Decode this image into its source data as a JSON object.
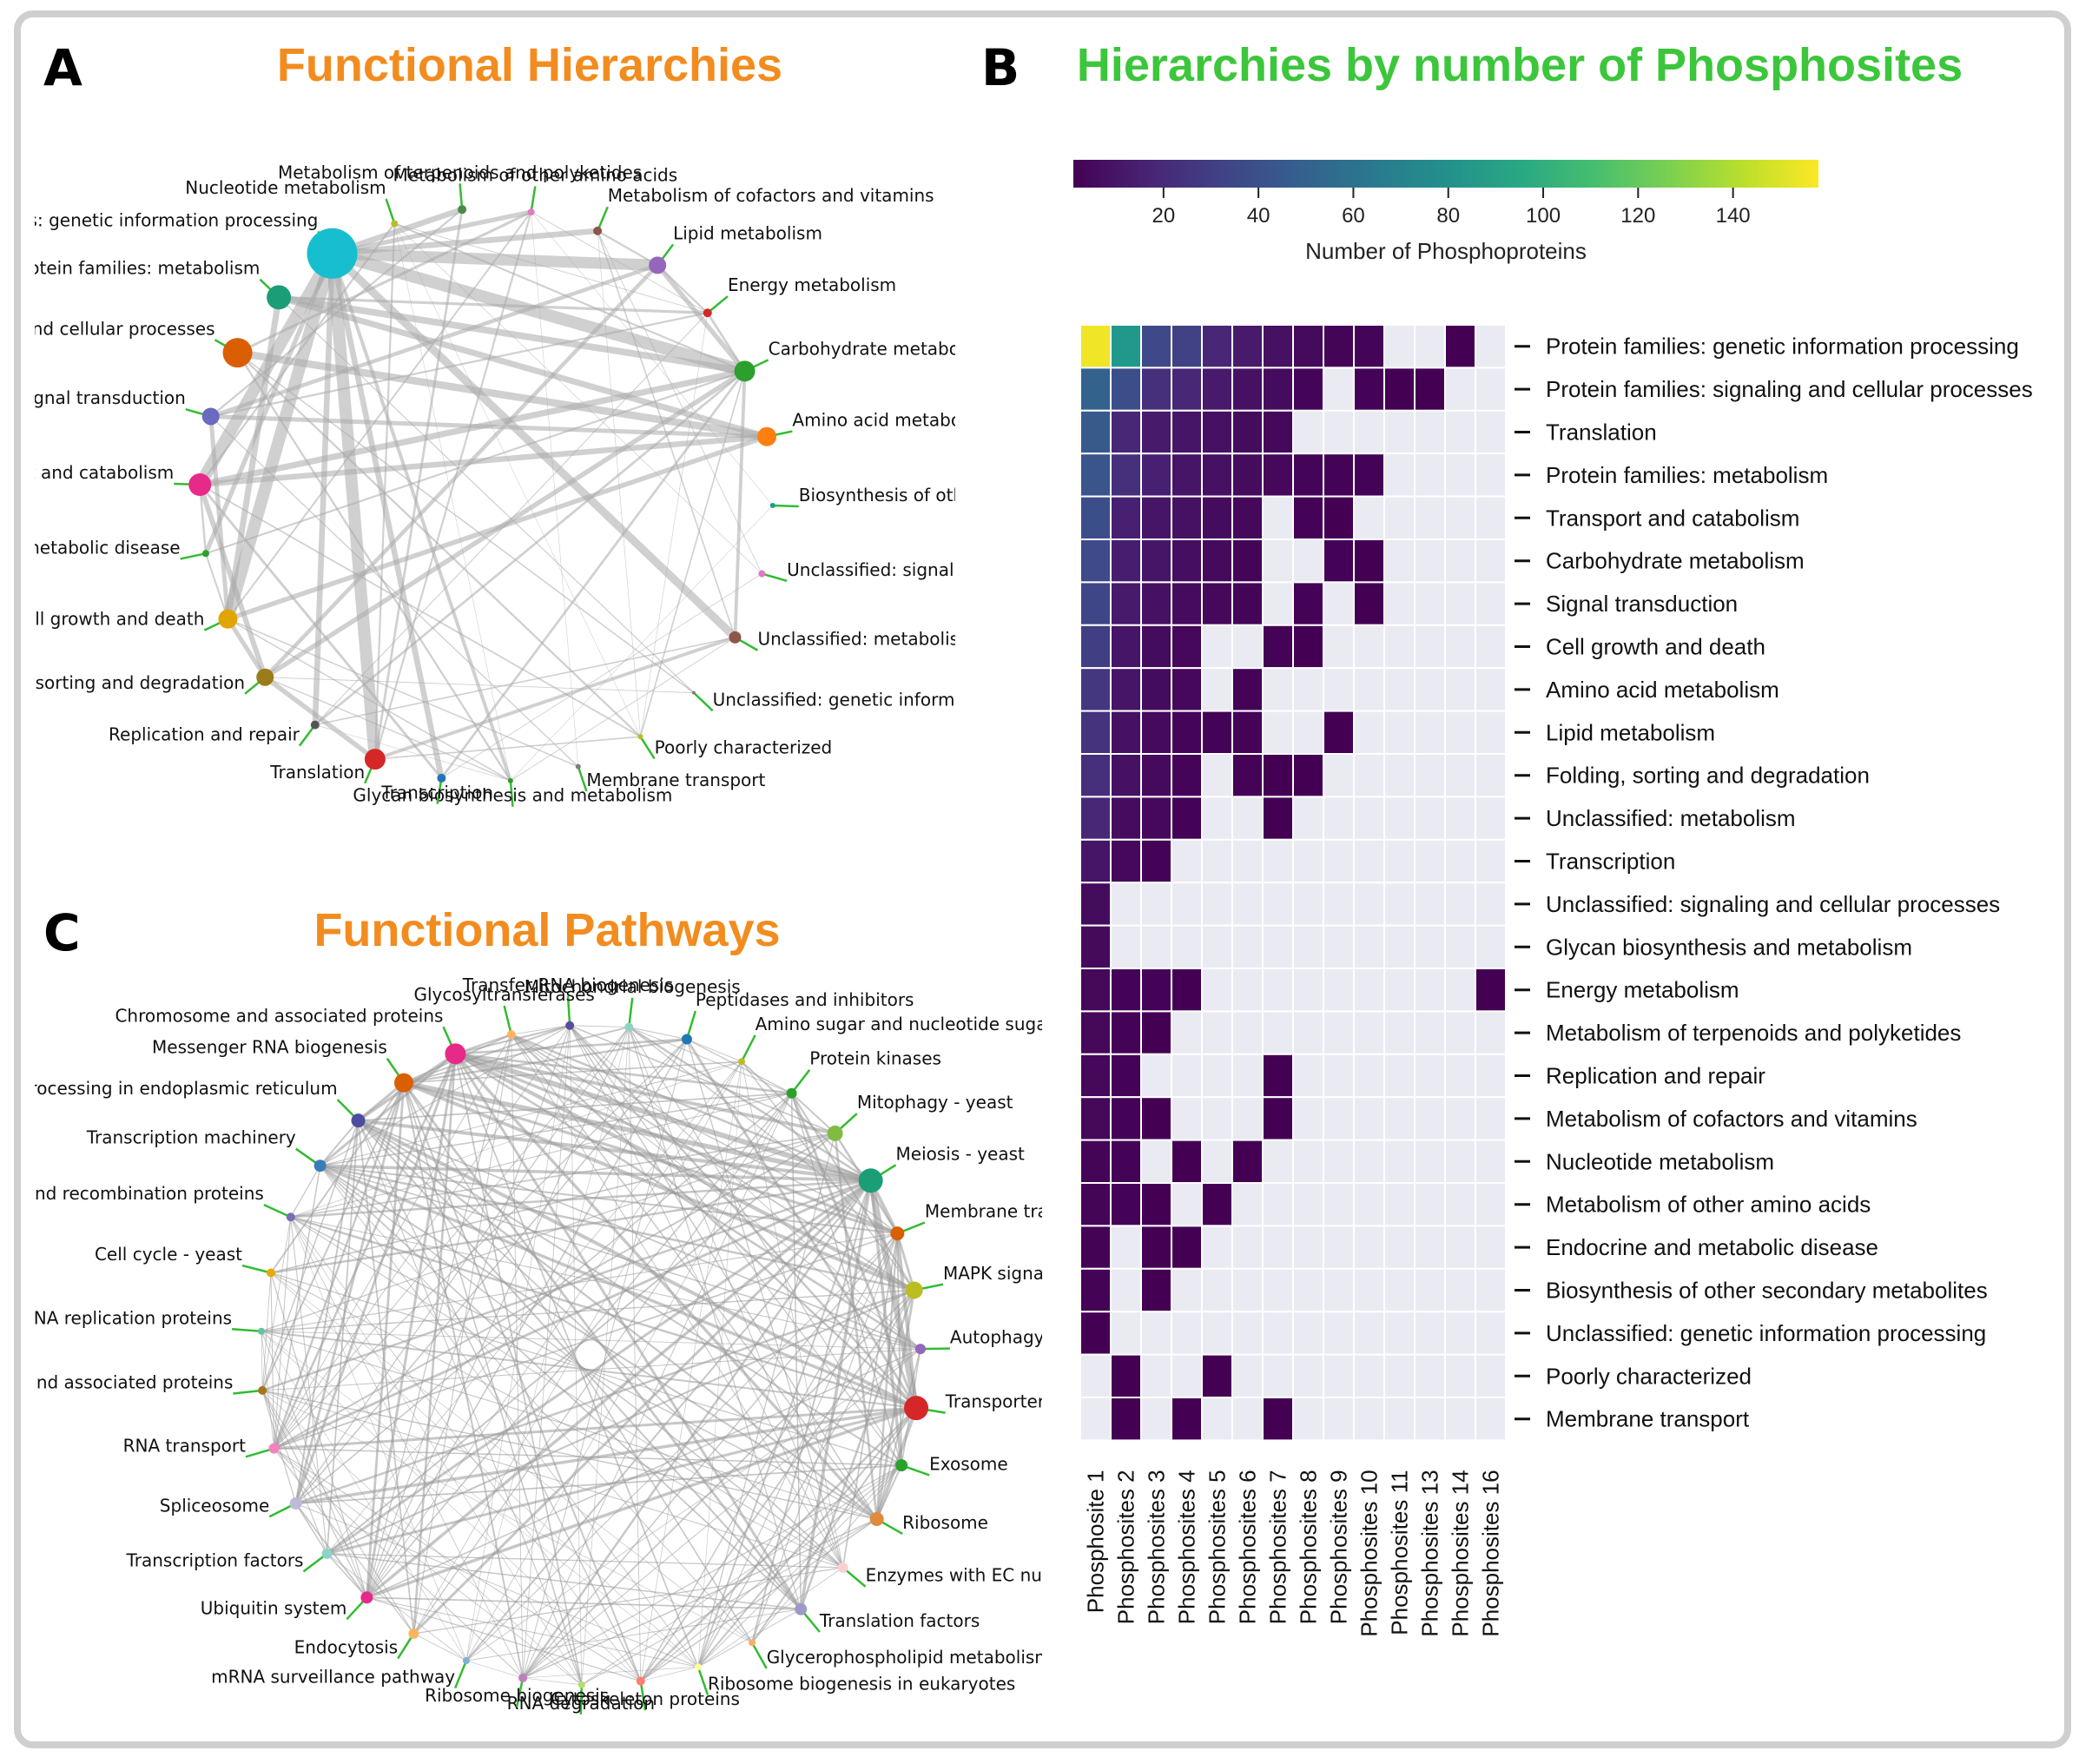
{
  "panels": {
    "a": {
      "letter": "A",
      "title": "Functional Hierarchies",
      "title_color": "#f28c1f"
    },
    "b": {
      "letter": "B",
      "title": "Hierarchies by number of Phosphosites",
      "title_color": "#3cc63c"
    },
    "c": {
      "letter": "C",
      "title": "Functional Pathways",
      "title_color": "#f28c1f"
    }
  },
  "chart_data": [
    {
      "panel": "A",
      "type": "network",
      "layout": "circular",
      "edge_color": "#aaaaaa",
      "label_line_color": "#33bb33",
      "nodes": [
        {
          "label": "Metabolism of other amino acids",
          "color": "#e377c2",
          "size": 4
        },
        {
          "label": "Metabolism of cofactors and vitamins",
          "color": "#8c564b",
          "size": 5
        },
        {
          "label": "Lipid metabolism",
          "color": "#9467bd",
          "size": 10
        },
        {
          "label": "Energy metabolism",
          "color": "#d62728",
          "size": 5
        },
        {
          "label": "Carbohydrate metabolism",
          "color": "#2ca02c",
          "size": 12
        },
        {
          "label": "Amino acid metabolism",
          "color": "#ff7f0e",
          "size": 11
        },
        {
          "label": "Biosynthesis of other secondary metabolites",
          "color": "#17a085",
          "size": 3
        },
        {
          "label": "Unclassified: signaling and cellular processes",
          "color": "#e377c2",
          "size": 4
        },
        {
          "label": "Unclassified: metabolism",
          "color": "#8c564b",
          "size": 7
        },
        {
          "label": "Unclassified: genetic information processing",
          "color": "#7f7f7f",
          "size": 2
        },
        {
          "label": "Poorly characterized",
          "color": "#bcbd22",
          "size": 3
        },
        {
          "label": "Membrane transport",
          "color": "#7f7f7f",
          "size": 3
        },
        {
          "label": "Glycan biosynthesis and metabolism",
          "color": "#2ca02c",
          "size": 3
        },
        {
          "label": "Transcription",
          "color": "#1f77b4",
          "size": 5
        },
        {
          "label": "Translation",
          "color": "#d62728",
          "size": 12
        },
        {
          "label": "Replication and repair",
          "color": "#555555",
          "size": 5
        },
        {
          "label": "Folding, sorting and degradation",
          "color": "#9a7c1a",
          "size": 10
        },
        {
          "label": "Cell growth and death",
          "color": "#e2a400",
          "size": 11
        },
        {
          "label": "Endocrine and metabolic disease",
          "color": "#2ca02c",
          "size": 4
        },
        {
          "label": "Transport and catabolism",
          "color": "#e7298a",
          "size": 13
        },
        {
          "label": "Signal transduction",
          "color": "#6a6ac0",
          "size": 10
        },
        {
          "label": "Protein families: signaling and cellular processes",
          "color": "#d95f02",
          "size": 17
        },
        {
          "label": "Protein families: metabolism",
          "color": "#1b9e77",
          "size": 14
        },
        {
          "label": "Protein families: genetic information processing",
          "color": "#17becf",
          "size": 29
        },
        {
          "label": "Nucleotide metabolism",
          "color": "#bcbd22",
          "size": 4
        },
        {
          "label": "Metabolism of terpenoids and polyketides",
          "color": "#4a8a4a",
          "size": 5
        }
      ]
    },
    {
      "panel": "B",
      "type": "heatmap",
      "colorbar": {
        "label": "Number of Phosphoproteins",
        "ticks": [
          20,
          40,
          60,
          80,
          100,
          120,
          140
        ],
        "range": [
          1,
          158
        ],
        "colormap": "viridis"
      },
      "columns": [
        "Phosphosite 1",
        "Phosphosites 2",
        "Phosphosites 3",
        "Phosphosites 4",
        "Phosphosites 5",
        "Phosphosites 6",
        "Phosphosites 7",
        "Phosphosites 8",
        "Phosphosites 9",
        "Phosphosites 10",
        "Phosphosites 11",
        "Phosphosites 13",
        "Phosphosites 14",
        "Phosphosites 16"
      ],
      "rows": [
        "Protein families: genetic information processing",
        "Protein families: signaling and cellular processes",
        "Translation",
        "Protein families: metabolism",
        "Transport and catabolism",
        "Carbohydrate metabolism",
        "Signal transduction",
        "Cell growth and death",
        "Amino acid metabolism",
        "Lipid metabolism",
        "Folding, sorting and degradation",
        "Unclassified: metabolism",
        "Transcription",
        "Unclassified: signaling and cellular processes",
        "Glycan biosynthesis and metabolism",
        "Energy metabolism",
        "Metabolism of terpenoids and polyketides",
        "Replication and repair",
        "Metabolism of cofactors and vitamins",
        "Nucleotide metabolism",
        "Metabolism of other amino acids",
        "Endocrine and metabolic disease",
        "Biosynthesis of other secondary metabolites",
        "Unclassified: genetic information processing",
        "Poorly characterized",
        "Membrane transport"
      ],
      "missing_color": "#eaeaf2",
      "values": [
        [
          155,
          85,
          35,
          32,
          18,
          12,
          8,
          5,
          3,
          3,
          null,
          null,
          1,
          null
        ],
        [
          50,
          38,
          22,
          18,
          12,
          8,
          6,
          3,
          null,
          2,
          1,
          1,
          null,
          null
        ],
        [
          45,
          18,
          12,
          10,
          8,
          6,
          4,
          null,
          null,
          null,
          null,
          null,
          null,
          null
        ],
        [
          42,
          22,
          15,
          10,
          8,
          6,
          4,
          3,
          2,
          2,
          null,
          null,
          null,
          null
        ],
        [
          38,
          15,
          10,
          8,
          6,
          4,
          null,
          2,
          1,
          null,
          null,
          null,
          null,
          null
        ],
        [
          36,
          14,
          10,
          7,
          5,
          3,
          null,
          null,
          2,
          1,
          null,
          null,
          null,
          null
        ],
        [
          34,
          12,
          8,
          6,
          4,
          3,
          null,
          2,
          null,
          1,
          null,
          null,
          null,
          null
        ],
        [
          30,
          10,
          6,
          4,
          null,
          null,
          2,
          1,
          null,
          null,
          null,
          null,
          null,
          null
        ],
        [
          26,
          10,
          6,
          4,
          null,
          2,
          null,
          null,
          null,
          null,
          null,
          null,
          null,
          null
        ],
        [
          24,
          8,
          5,
          3,
          2,
          2,
          null,
          null,
          1,
          null,
          null,
          null,
          null,
          null
        ],
        [
          22,
          8,
          5,
          3,
          null,
          2,
          1,
          1,
          null,
          null,
          null,
          null,
          null,
          null
        ],
        [
          18,
          6,
          4,
          2,
          null,
          null,
          1,
          null,
          null,
          null,
          null,
          null,
          null,
          null
        ],
        [
          10,
          4,
          2,
          null,
          null,
          null,
          null,
          null,
          null,
          null,
          null,
          null,
          null,
          null
        ],
        [
          6,
          null,
          null,
          null,
          null,
          null,
          null,
          null,
          null,
          null,
          null,
          null,
          null,
          null
        ],
        [
          5,
          null,
          null,
          null,
          null,
          null,
          null,
          null,
          null,
          null,
          null,
          null,
          null,
          null
        ],
        [
          4,
          2,
          2,
          1,
          null,
          null,
          null,
          null,
          null,
          null,
          null,
          null,
          null,
          1
        ],
        [
          4,
          2,
          1,
          null,
          null,
          null,
          null,
          null,
          null,
          null,
          null,
          null,
          null,
          null
        ],
        [
          4,
          2,
          null,
          null,
          null,
          null,
          1,
          null,
          null,
          null,
          null,
          null,
          null,
          null
        ],
        [
          4,
          2,
          1,
          null,
          null,
          null,
          1,
          null,
          null,
          null,
          null,
          null,
          null,
          null
        ],
        [
          3,
          2,
          null,
          1,
          null,
          1,
          null,
          null,
          null,
          null,
          null,
          null,
          null,
          null
        ],
        [
          3,
          2,
          1,
          null,
          1,
          null,
          null,
          null,
          null,
          null,
          null,
          null,
          null,
          null
        ],
        [
          2,
          null,
          1,
          1,
          null,
          null,
          null,
          null,
          null,
          null,
          null,
          null,
          null,
          null
        ],
        [
          2,
          null,
          1,
          null,
          null,
          null,
          null,
          null,
          null,
          null,
          null,
          null,
          null,
          null
        ],
        [
          1,
          null,
          null,
          null,
          null,
          null,
          null,
          null,
          null,
          null,
          null,
          null,
          null,
          null
        ],
        [
          null,
          1,
          null,
          null,
          1,
          null,
          null,
          null,
          null,
          null,
          null,
          null,
          null,
          null
        ],
        [
          null,
          1,
          null,
          1,
          null,
          null,
          1,
          null,
          null,
          null,
          null,
          null,
          null,
          null
        ]
      ]
    },
    {
      "panel": "C",
      "type": "network",
      "layout": "circular",
      "edge_color": "#999999",
      "label_line_color": "#33bb33",
      "nodes": [
        {
          "label": "Transfer RNA biogenesis",
          "color": "#5b4a9e",
          "size": 5
        },
        {
          "label": "Mitochondrial biogenesis",
          "color": "#8dd3c7",
          "size": 5
        },
        {
          "label": "Peptidases and inhibitors",
          "color": "#1f77b4",
          "size": 6
        },
        {
          "label": "Amino sugar and nucleotide sugar metabolism",
          "color": "#bcbd22",
          "size": 4
        },
        {
          "label": "Protein kinases",
          "color": "#2ca02c",
          "size": 6
        },
        {
          "label": "Mitophagy - yeast",
          "color": "#7fbc41",
          "size": 9
        },
        {
          "label": "Meiosis - yeast",
          "color": "#1b9e77",
          "size": 14
        },
        {
          "label": "Membrane trafficking",
          "color": "#d95f02",
          "size": 8
        },
        {
          "label": "MAPK signaling pathway - yeast",
          "color": "#bcbd22",
          "size": 10
        },
        {
          "label": "Autophagy - yeast",
          "color": "#9467bd",
          "size": 6
        },
        {
          "label": "Transporters",
          "color": "#d62728",
          "size": 14
        },
        {
          "label": "Exosome",
          "color": "#2ca02c",
          "size": 7
        },
        {
          "label": "Ribosome",
          "color": "#e08a3c",
          "size": 8
        },
        {
          "label": "Enzymes with EC numbers",
          "color": "#fdd0d0",
          "size": 6
        },
        {
          "label": "Translation factors",
          "color": "#9e9ac8",
          "size": 7
        },
        {
          "label": "Glycerophospholipid metabolism",
          "color": "#fdae6b",
          "size": 4
        },
        {
          "label": "Ribosome biogenesis in eukaryotes",
          "color": "#ffff99",
          "size": 4
        },
        {
          "label": "Cytoskeleton proteins",
          "color": "#fb8072",
          "size": 5
        },
        {
          "label": "RNA degradation",
          "color": "#b3de69",
          "size": 4
        },
        {
          "label": "Ribosome biogenesis",
          "color": "#bc80bd",
          "size": 5
        },
        {
          "label": "mRNA surveillance pathway",
          "color": "#80b1d3",
          "size": 4
        },
        {
          "label": "Endocytosis",
          "color": "#fdb462",
          "size": 6
        },
        {
          "label": "Ubiquitin system",
          "color": "#e7298a",
          "size": 7
        },
        {
          "label": "Transcription factors",
          "color": "#8dd3c7",
          "size": 6
        },
        {
          "label": "Spliceosome",
          "color": "#bebada",
          "size": 7
        },
        {
          "label": "RNA transport",
          "color": "#f781bf",
          "size": 6
        },
        {
          "label": "Protein phosphatases and associated proteins",
          "color": "#a6761d",
          "size": 5
        },
        {
          "label": "DNA replication proteins",
          "color": "#66c2a5",
          "size": 4
        },
        {
          "label": "Cell cycle - yeast",
          "color": "#e6ab02",
          "size": 5
        },
        {
          "label": "DNA repair and recombination proteins",
          "color": "#7570b3",
          "size": 5
        },
        {
          "label": "Transcription machinery",
          "color": "#377eb8",
          "size": 7
        },
        {
          "label": "Protein processing in endoplasmic reticulum",
          "color": "#4d4d9f",
          "size": 8
        },
        {
          "label": "Messenger RNA biogenesis",
          "color": "#d95f02",
          "size": 11
        },
        {
          "label": "Chromosome and associated proteins",
          "color": "#e7298a",
          "size": 12
        },
        {
          "label": "Glycosyltransferases",
          "color": "#fdb462",
          "size": 5
        }
      ]
    }
  ]
}
